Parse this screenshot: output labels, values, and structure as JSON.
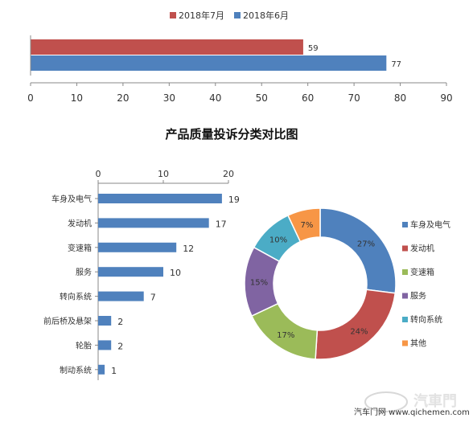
{
  "colors": {
    "red": "#c0504d",
    "blue": "#4f81bd",
    "green": "#9bbb59",
    "purple": "#8064a2",
    "teal": "#4bacc6",
    "orange": "#f79646",
    "axis": "#888888"
  },
  "chart_data": [
    {
      "type": "bar",
      "orientation": "horizontal",
      "series": [
        {
          "name": "2018年7月",
          "values": [
            59
          ],
          "color": "#c0504d"
        },
        {
          "name": "2018年6月",
          "values": [
            77
          ],
          "color": "#4f81bd"
        }
      ],
      "xlim": [
        0,
        90
      ],
      "xticks": [
        "0",
        "10",
        "20",
        "30",
        "40",
        "50",
        "60",
        "70",
        "80",
        "90"
      ],
      "legend": "top"
    },
    {
      "type": "bar",
      "orientation": "horizontal",
      "categories": [
        "车身及电气",
        "发动机",
        "变速箱",
        "服务",
        "转向系统",
        "前后桥及悬架",
        "轮胎",
        "制动系统"
      ],
      "values": [
        19,
        17,
        12,
        10,
        7,
        2,
        2,
        1
      ],
      "xlim": [
        0,
        20
      ],
      "xticks": [
        "0",
        "10",
        "20"
      ],
      "color": "#4f81bd"
    },
    {
      "type": "pie",
      "donut": true,
      "title": "产品质量投诉分类对比图",
      "labels": [
        "车身及电气",
        "发动机",
        "变速箱",
        "服务",
        "转向系统",
        "其他"
      ],
      "values": [
        27,
        24,
        17,
        15,
        10,
        7
      ],
      "value_labels": [
        "27%",
        "24%",
        "17%",
        "15%",
        "10%",
        "7%"
      ],
      "colors": [
        "#4f81bd",
        "#c0504d",
        "#9bbb59",
        "#8064a2",
        "#4bacc6",
        "#f79646"
      ],
      "legend": "right"
    }
  ],
  "watermark": "汽车门网 www.qichemen.com"
}
